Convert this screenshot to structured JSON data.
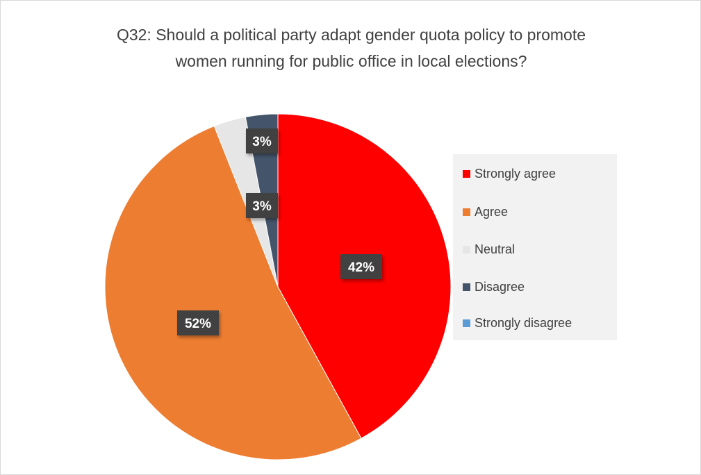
{
  "chart_data": {
    "type": "pie",
    "title_lines": [
      "Q32: Should a political party adapt gender quota policy to promote",
      "women running for public office in local elections?"
    ],
    "categories": [
      "Strongly agree",
      "Agree",
      "Neutral",
      "Disagree",
      "Strongly disagree"
    ],
    "values": [
      42,
      52,
      3,
      3,
      0
    ],
    "data_labels": [
      "42%",
      "52%",
      "3%",
      "3%",
      ""
    ],
    "colors": [
      "#ff0000",
      "#ed7d31",
      "#e7e6e6",
      "#44546a",
      "#5b9bd5"
    ],
    "legend_position": "right",
    "start_angle_deg": 0,
    "direction": "clockwise"
  }
}
